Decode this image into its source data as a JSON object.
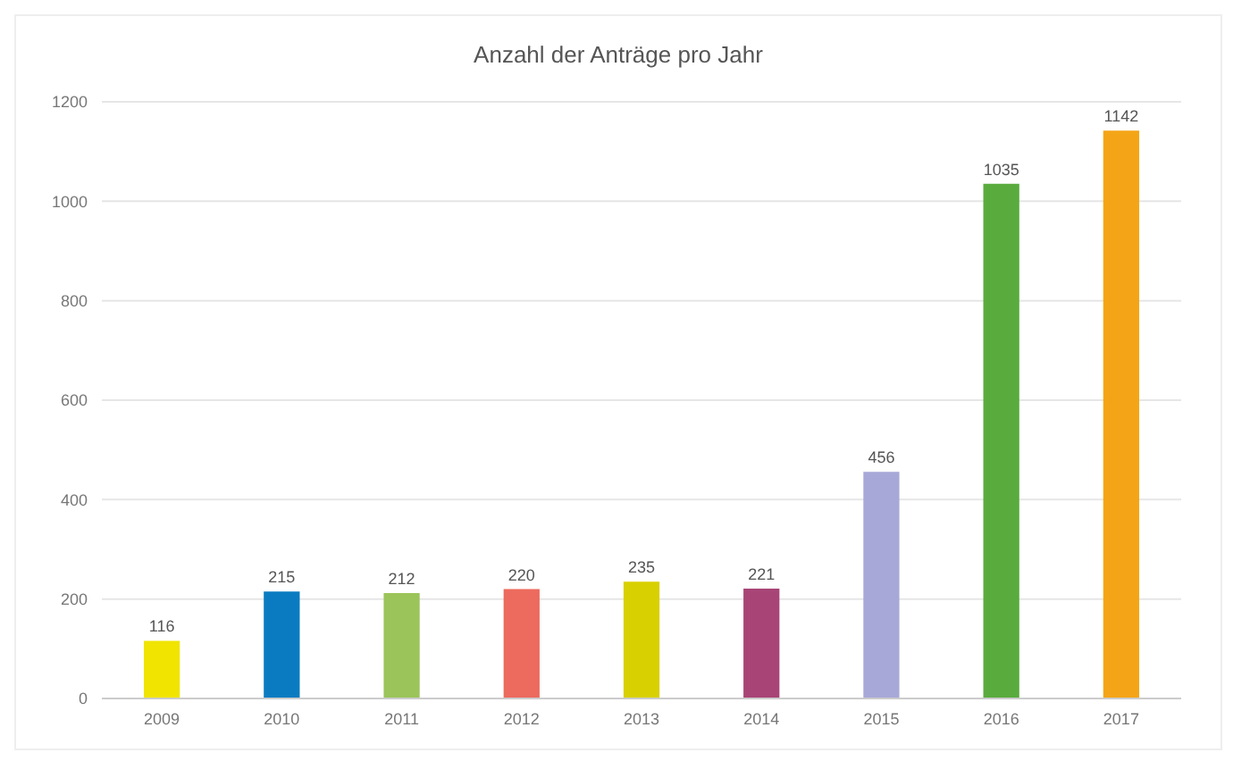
{
  "chart_data": {
    "type": "bar",
    "title": "Anzahl der Anträge pro Jahr",
    "categories": [
      "2009",
      "2010",
      "2011",
      "2012",
      "2013",
      "2014",
      "2015",
      "2016",
      "2017"
    ],
    "values": [
      116,
      215,
      212,
      220,
      235,
      221,
      456,
      1035,
      1142
    ],
    "colors": [
      "#f0e400",
      "#0b7bc1",
      "#9bc45a",
      "#ec6a5e",
      "#d8d000",
      "#a84576",
      "#a8a8d8",
      "#5aab3e",
      "#f4a517"
    ],
    "ylim": [
      0,
      1200
    ],
    "yticks": [
      0,
      200,
      400,
      600,
      800,
      1000,
      1200
    ],
    "grid": "y",
    "data_labels": true
  }
}
